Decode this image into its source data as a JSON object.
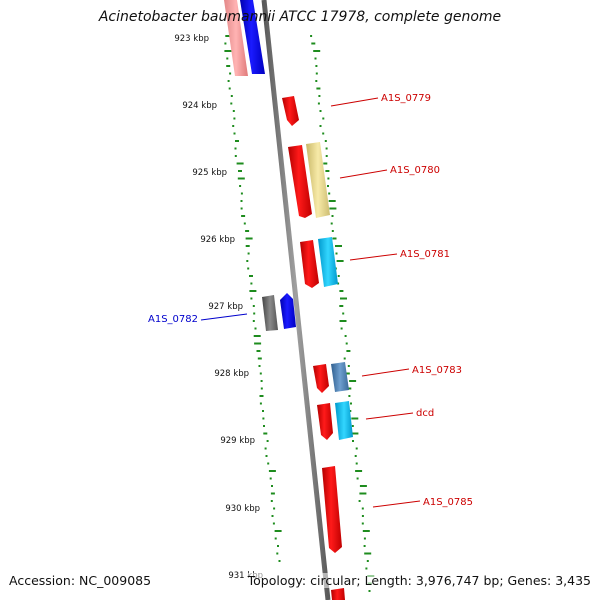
{
  "title": "Acinetobacter baumannii ATCC 17978, complete genome",
  "accession": "Accession: NC_009085",
  "topology": "Topology: circular; Length: 3,976,747 bp; Genes: 3,435",
  "colors": {
    "backbone": "#808080",
    "gene": "#e8000b",
    "reverse_gene": "#1a1aff",
    "gc_ticks": "#1e8c1e",
    "label_forward": "#cc0000",
    "label_reverse": "#0000cc"
  },
  "ruler": [
    "923 kbp",
    "924 kbp",
    "925 kbp",
    "926 kbp",
    "927 kbp",
    "928 kbp",
    "929 kbp",
    "930 kbp",
    "931 kbp"
  ],
  "gene_labels": [
    {
      "text": "A1S_0779",
      "strand": "forward"
    },
    {
      "text": "A1S_0780",
      "strand": "forward"
    },
    {
      "text": "A1S_0781",
      "strand": "forward"
    },
    {
      "text": "A1S_0782",
      "strand": "reverse"
    },
    {
      "text": "A1S_0783",
      "strand": "forward"
    },
    {
      "text": "dcd",
      "strand": "forward"
    },
    {
      "text": "A1S_0785",
      "strand": "forward"
    }
  ]
}
